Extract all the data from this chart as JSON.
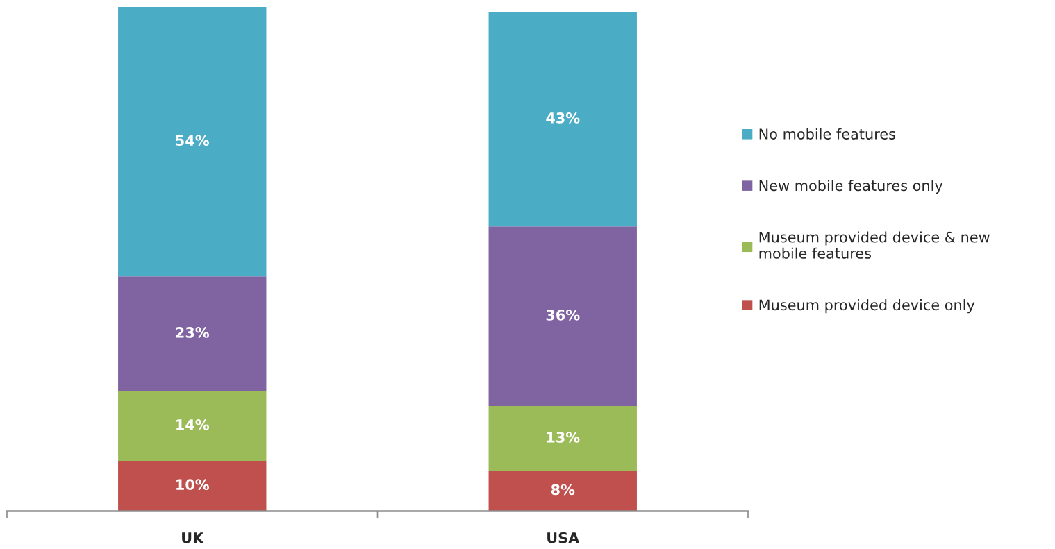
{
  "chart_data": {
    "type": "bar",
    "stacked": true,
    "categories": [
      "UK",
      "USA"
    ],
    "series": [
      {
        "name": "Museum provided device only",
        "color": "#c0504d",
        "values": [
          10,
          8
        ],
        "value_labels": [
          "10%",
          "8%"
        ]
      },
      {
        "name": "Museum provided device & new\nmobile features",
        "color": "#9bbb59",
        "values": [
          14,
          13
        ],
        "value_labels": [
          "14%",
          "13%"
        ]
      },
      {
        "name": "New mobile features only",
        "color": "#8064a2",
        "values": [
          23,
          36
        ],
        "value_labels": [
          "23%",
          "36%"
        ]
      },
      {
        "name": "No mobile features",
        "color": "#4bacc6",
        "values": [
          54,
          43
        ],
        "value_labels": [
          "54%",
          "43%"
        ]
      }
    ],
    "legend": "right"
  }
}
